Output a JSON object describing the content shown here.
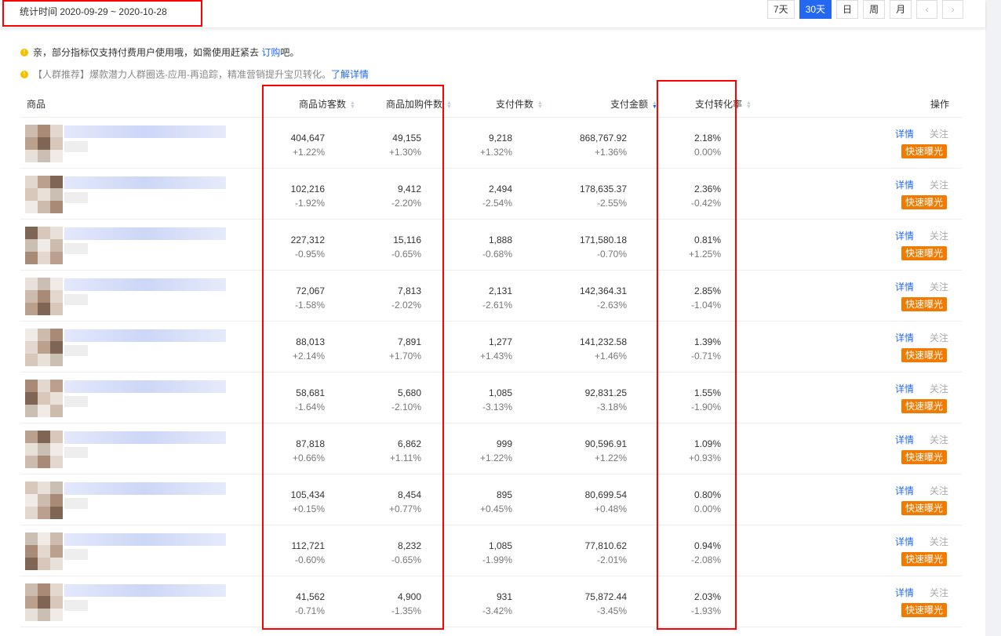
{
  "header": {
    "period": "统计时间 2020-09-29 ~ 2020-10-28",
    "ranges": [
      "7天",
      "30天",
      "日",
      "周",
      "月"
    ],
    "active_range": "30天"
  },
  "notices": [
    {
      "text": "亲，部分指标仅支持付费用户使用哦，如需使用赶紧去 ",
      "link": "订购",
      "suffix": "吧。"
    },
    {
      "text": "【人群推荐】爆款潜力人群圈选-应用-再追踪，精准营销提升宝贝转化。",
      "link": "了解详情",
      "suffix": ""
    }
  ],
  "columns": {
    "product": "商品",
    "visitors": "商品访客数",
    "cart": "商品加购件数",
    "pay_items": "支付件数",
    "pay_amount": "支付金额",
    "conversion": "支付转化率",
    "actions": "操作"
  },
  "action_labels": {
    "detail": "详情",
    "follow": "关注",
    "boost": "快速曝光"
  },
  "colors": {
    "accent": "#2468f2",
    "boost": "#f07b00",
    "highlight": "#ff0000"
  },
  "rows": [
    {
      "visitors": "404,647",
      "visitors_chg": "+1.22%",
      "cart": "49,155",
      "cart_chg": "+1.30%",
      "pay_items": "9,218",
      "pay_items_chg": "+1.32%",
      "pay_amount": "868,767.92",
      "pay_amount_chg": "+1.36%",
      "conversion": "2.18%",
      "conversion_chg": "0.00%"
    },
    {
      "visitors": "102,216",
      "visitors_chg": "-1.92%",
      "cart": "9,412",
      "cart_chg": "-2.20%",
      "pay_items": "2,494",
      "pay_items_chg": "-2.54%",
      "pay_amount": "178,635.37",
      "pay_amount_chg": "-2.55%",
      "conversion": "2.36%",
      "conversion_chg": "-0.42%"
    },
    {
      "visitors": "227,312",
      "visitors_chg": "-0.95%",
      "cart": "15,116",
      "cart_chg": "-0.65%",
      "pay_items": "1,888",
      "pay_items_chg": "-0.68%",
      "pay_amount": "171,580.18",
      "pay_amount_chg": "-0.70%",
      "conversion": "0.81%",
      "conversion_chg": "+1.25%"
    },
    {
      "visitors": "72,067",
      "visitors_chg": "-1.58%",
      "cart": "7,813",
      "cart_chg": "-2.02%",
      "pay_items": "2,131",
      "pay_items_chg": "-2.61%",
      "pay_amount": "142,364.31",
      "pay_amount_chg": "-2.63%",
      "conversion": "2.85%",
      "conversion_chg": "-1.04%"
    },
    {
      "visitors": "88,013",
      "visitors_chg": "+2.14%",
      "cart": "7,891",
      "cart_chg": "+1.70%",
      "pay_items": "1,277",
      "pay_items_chg": "+1.43%",
      "pay_amount": "141,232.58",
      "pay_amount_chg": "+1.46%",
      "conversion": "1.39%",
      "conversion_chg": "-0.71%"
    },
    {
      "visitors": "58,681",
      "visitors_chg": "-1.64%",
      "cart": "5,680",
      "cart_chg": "-2.10%",
      "pay_items": "1,085",
      "pay_items_chg": "-3.13%",
      "pay_amount": "92,831.25",
      "pay_amount_chg": "-3.18%",
      "conversion": "1.55%",
      "conversion_chg": "-1.90%"
    },
    {
      "visitors": "87,818",
      "visitors_chg": "+0.66%",
      "cart": "6,862",
      "cart_chg": "+1.11%",
      "pay_items": "999",
      "pay_items_chg": "+1.22%",
      "pay_amount": "90,596.91",
      "pay_amount_chg": "+1.22%",
      "conversion": "1.09%",
      "conversion_chg": "+0.93%"
    },
    {
      "visitors": "105,434",
      "visitors_chg": "+0.15%",
      "cart": "8,454",
      "cart_chg": "+0.77%",
      "pay_items": "895",
      "pay_items_chg": "+0.45%",
      "pay_amount": "80,699.54",
      "pay_amount_chg": "+0.48%",
      "conversion": "0.80%",
      "conversion_chg": "0.00%"
    },
    {
      "visitors": "112,721",
      "visitors_chg": "-0.60%",
      "cart": "8,232",
      "cart_chg": "-0.65%",
      "pay_items": "1,085",
      "pay_items_chg": "-1.99%",
      "pay_amount": "77,810.62",
      "pay_amount_chg": "-2.01%",
      "conversion": "0.94%",
      "conversion_chg": "-2.08%"
    },
    {
      "visitors": "41,562",
      "visitors_chg": "-0.71%",
      "cart": "4,900",
      "cart_chg": "-1.35%",
      "pay_items": "931",
      "pay_items_chg": "-3.42%",
      "pay_amount": "75,872.44",
      "pay_amount_chg": "-3.45%",
      "conversion": "2.03%",
      "conversion_chg": "-1.93%"
    }
  ]
}
